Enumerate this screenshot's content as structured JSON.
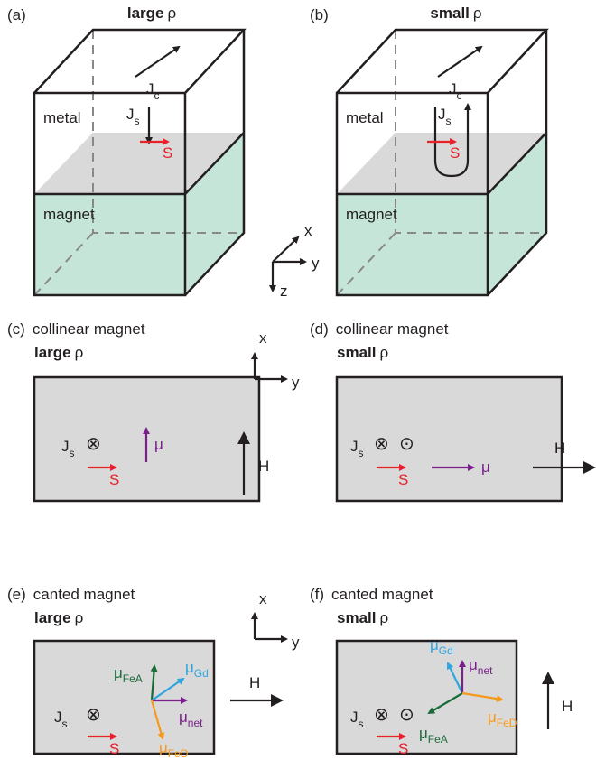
{
  "panels": [
    {
      "label": "(a)",
      "title": "large",
      "symbol": "ρ",
      "current": "J",
      "current_sub": "c",
      "spin_current": "J",
      "spin_current_sub": "s",
      "top_layer": "metal",
      "bottom_layer": "magnet",
      "spin": "S"
    },
    {
      "label": "(b)",
      "title": "small",
      "symbol": "ρ",
      "current": "J",
      "current_sub": "c",
      "spin_current": "J",
      "spin_current_sub": "s",
      "top_layer": "metal",
      "bottom_layer": "magnet",
      "spin": "S"
    },
    {
      "label": "(c)",
      "heading": "collinear magnet",
      "title": "large",
      "symbol": "ρ",
      "spin_current": "J",
      "spin_current_sub": "s",
      "into": "⊗",
      "spin": "S",
      "moments": [
        {
          "symbol": "μ"
        }
      ],
      "field": "H"
    },
    {
      "label": "(d)",
      "heading": "collinear magnet",
      "title": "small",
      "symbol": "ρ",
      "spin_current": "J",
      "spin_current_sub": "s",
      "into": "⊗",
      "out": "⊙",
      "spin": "S",
      "moments": [
        {
          "symbol": "μ"
        }
      ],
      "field": "H"
    },
    {
      "label": "(e)",
      "heading": "canted magnet",
      "title": "large",
      "symbol": "ρ",
      "spin_current": "J",
      "spin_current_sub": "s",
      "into": "⊗",
      "spin": "S",
      "moments": [
        {
          "symbol": "μ",
          "sub": "FeA"
        },
        {
          "symbol": "μ",
          "sub": "Gd"
        },
        {
          "symbol": "μ",
          "sub": "net"
        },
        {
          "symbol": "μ",
          "sub": "FeD"
        }
      ],
      "field": "H"
    },
    {
      "label": "(f)",
      "heading": "canted magnet",
      "title": "small",
      "symbol": "ρ",
      "spin_current": "J",
      "spin_current_sub": "s",
      "into": "⊗",
      "out": "⊙",
      "spin": "S",
      "moments": [
        {
          "symbol": "μ",
          "sub": "Gd"
        },
        {
          "symbol": "μ",
          "sub": "net"
        },
        {
          "symbol": "μ",
          "sub": "FeA"
        },
        {
          "symbol": "μ",
          "sub": "FeD"
        }
      ],
      "field": "H"
    }
  ],
  "axes": [
    {
      "x": "x",
      "y": "y",
      "z": "z"
    },
    {
      "x": "x",
      "y": "y"
    },
    {
      "x": "x",
      "y": "y"
    }
  ]
}
